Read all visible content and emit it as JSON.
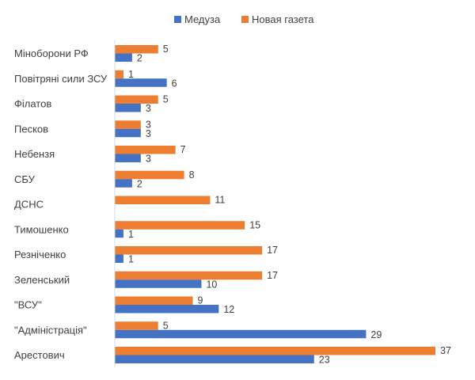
{
  "chart_data": {
    "type": "bar",
    "orientation": "horizontal",
    "categories": [
      "Міноборони РФ",
      "Повітряні сили ЗСУ",
      "Філатов",
      "Песков",
      "Небензя",
      "СБУ",
      "ДСНС",
      "Тимошенко",
      "Резніченко",
      "Зеленський",
      "\"ВСУ\"",
      "\"Адміністрація\"",
      "Арестович"
    ],
    "series": [
      {
        "name": "Медуза",
        "color": "#4472C4",
        "values": [
          2,
          6,
          3,
          3,
          3,
          2,
          null,
          1,
          1,
          10,
          12,
          29,
          23
        ]
      },
      {
        "name": "Новая газета",
        "color": "#ED7D31",
        "values": [
          5,
          1,
          5,
          3,
          7,
          8,
          11,
          15,
          17,
          17,
          9,
          5,
          37
        ]
      }
    ],
    "xlim": [
      0,
      37
    ],
    "grid": false,
    "legend_position": "top",
    "data_labels": true
  }
}
